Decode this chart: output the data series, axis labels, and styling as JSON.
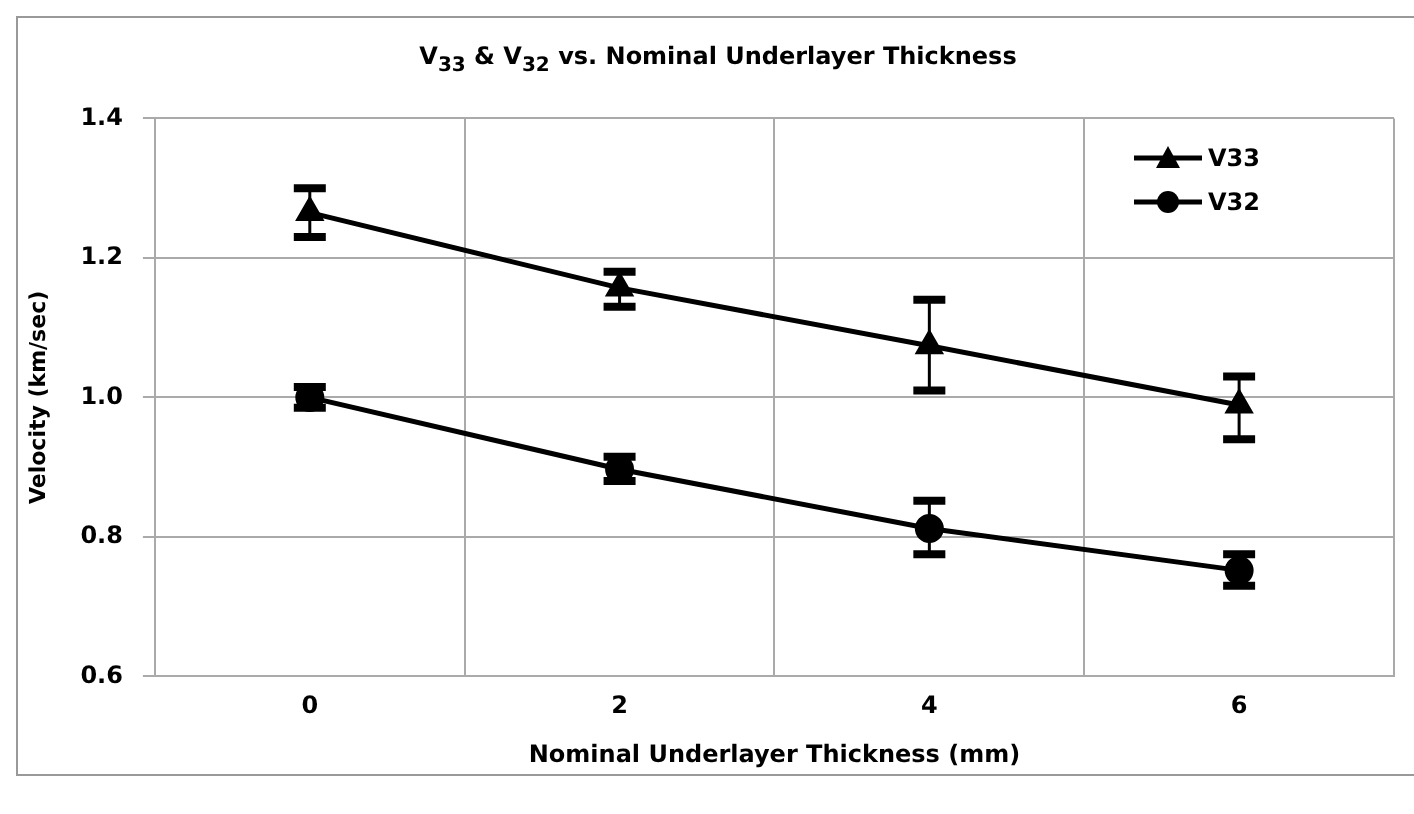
{
  "chart_data": {
    "type": "line",
    "title": "V$_{33}$  & V$_{32}$ vs. Nominal Underlayer Thickness",
    "xlabel": "Nominal Underlayer Thickness (mm)",
    "ylabel": "Velocity (km/sec)",
    "categories": [
      "0",
      "2",
      "4",
      "6"
    ],
    "series": [
      {
        "name": "V33",
        "color": "#000000",
        "marker": "triangle",
        "values": [
          1.265,
          1.157,
          1.074,
          0.989
        ],
        "errors": [
          [
            1.23,
            1.3
          ],
          [
            1.13,
            1.18
          ],
          [
            1.01,
            1.14
          ],
          [
            0.94,
            1.03
          ]
        ]
      },
      {
        "name": "V32",
        "color": "#000000",
        "marker": "circle",
        "values": [
          1.0,
          0.897,
          0.812,
          0.752
        ],
        "errors": [
          [
            0.985,
            1.015
          ],
          [
            0.88,
            0.915
          ],
          [
            0.775,
            0.852
          ],
          [
            0.73,
            0.775
          ]
        ]
      }
    ],
    "ylim": [
      0.6,
      1.4
    ],
    "yticks": [
      {
        "value": 0.6,
        "label": "0.6"
      },
      {
        "value": 0.8,
        "label": "0.8"
      },
      {
        "value": 1.0,
        "label": "1.0"
      },
      {
        "value": 1.2,
        "label": "1.2"
      },
      {
        "value": 1.4,
        "label": "1.4"
      }
    ],
    "grid": true,
    "legend": "top right",
    "line_style": "solid"
  }
}
